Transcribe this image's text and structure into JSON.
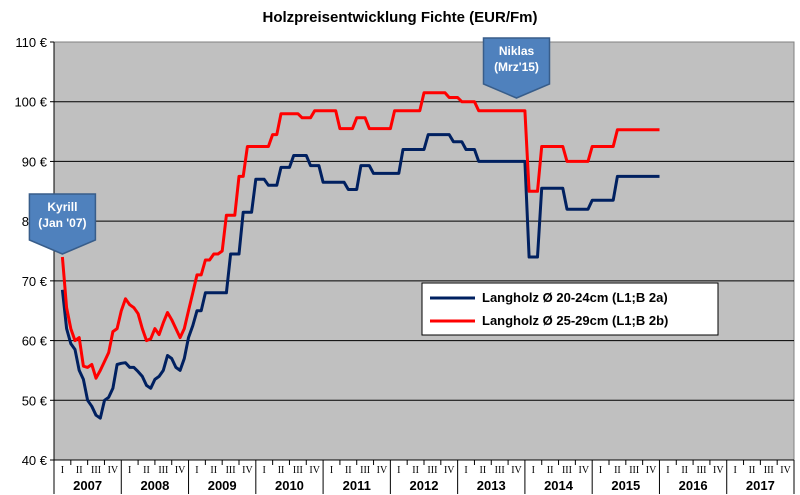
{
  "chart_data": {
    "type": "line",
    "title": "Holzpreisentwicklung  Fichte (EUR/Fm)",
    "ylim": [
      40,
      110
    ],
    "yticks": [
      "40 €",
      "50 €",
      "60 €",
      "70 €",
      "80 €",
      "90 €",
      "100 €",
      "110 €"
    ],
    "years": [
      "2007",
      "2008",
      "2009",
      "2010",
      "2011",
      "2012",
      "2013",
      "2014",
      "2015",
      "2016",
      "2017"
    ],
    "quarter_labels": [
      "I",
      "II",
      "III",
      "IV"
    ],
    "grid": true,
    "legend_position": "center-right",
    "series": [
      {
        "name": "Langholz Ø 20-24cm (L1;B 2a)",
        "color": "#002060",
        "points": [
          [
            0,
            68.5
          ],
          [
            0.25,
            62
          ],
          [
            0.5,
            59.5
          ],
          [
            0.75,
            58.5
          ],
          [
            1,
            55
          ],
          [
            1.25,
            53.5
          ],
          [
            1.5,
            50
          ],
          [
            1.75,
            49
          ],
          [
            2,
            47.5
          ],
          [
            2.25,
            47
          ],
          [
            2.5,
            50
          ],
          [
            2.75,
            50.5
          ],
          [
            3,
            52
          ],
          [
            3.25,
            56
          ],
          [
            3.5,
            56.2
          ],
          [
            3.75,
            56.3
          ],
          [
            4,
            55.5
          ],
          [
            4.25,
            55.5
          ],
          [
            4.5,
            54.8
          ],
          [
            4.75,
            54
          ],
          [
            5,
            52.5
          ],
          [
            5.25,
            52
          ],
          [
            5.5,
            53.5
          ],
          [
            5.75,
            54
          ],
          [
            6,
            55
          ],
          [
            6.25,
            57.5
          ],
          [
            6.5,
            57
          ],
          [
            6.75,
            55.5
          ],
          [
            7,
            55
          ],
          [
            7.25,
            57
          ],
          [
            7.5,
            60.5
          ],
          [
            7.75,
            62.5
          ],
          [
            8,
            65
          ],
          [
            8.25,
            65
          ],
          [
            8.5,
            68
          ],
          [
            9.75,
            68
          ],
          [
            10,
            74.5
          ],
          [
            10.5,
            74.5
          ],
          [
            10.75,
            81.5
          ],
          [
            11.25,
            81.5
          ],
          [
            11.5,
            87
          ],
          [
            12,
            87
          ],
          [
            12.25,
            86
          ],
          [
            12.75,
            86
          ],
          [
            13,
            89
          ],
          [
            13.5,
            89
          ],
          [
            13.75,
            91
          ],
          [
            14.5,
            91
          ],
          [
            14.75,
            89.3
          ],
          [
            15.25,
            89.3
          ],
          [
            15.5,
            86.5
          ],
          [
            16.75,
            86.5
          ],
          [
            17,
            85.3
          ],
          [
            17.5,
            85.3
          ],
          [
            17.75,
            89.3
          ],
          [
            18.25,
            89.3
          ],
          [
            18.5,
            88
          ],
          [
            20,
            88
          ],
          [
            20.25,
            92
          ],
          [
            21.5,
            92
          ],
          [
            21.75,
            94.5
          ],
          [
            23,
            94.5
          ],
          [
            23.25,
            93.3
          ],
          [
            23.75,
            93.3
          ],
          [
            24,
            92
          ],
          [
            24.5,
            92
          ],
          [
            24.75,
            90
          ],
          [
            27.5,
            90
          ],
          [
            27.75,
            74
          ],
          [
            28.25,
            74
          ],
          [
            28.5,
            85.5
          ],
          [
            29.75,
            85.5
          ],
          [
            30,
            82
          ],
          [
            31.25,
            82
          ],
          [
            31.5,
            83.5
          ],
          [
            32.75,
            83.5
          ],
          [
            33,
            87.5
          ],
          [
            35.5,
            87.5
          ]
        ]
      },
      {
        "name": "Langholz Ø 25-29cm (L1;B 2b)",
        "color": "#ff0000",
        "points": [
          [
            0,
            74
          ],
          [
            0.25,
            65.5
          ],
          [
            0.5,
            62
          ],
          [
            0.75,
            60
          ],
          [
            1,
            60.5
          ],
          [
            1.25,
            55.7
          ],
          [
            1.5,
            55.5
          ],
          [
            1.75,
            56
          ],
          [
            2,
            53.7
          ],
          [
            2.25,
            55
          ],
          [
            2.5,
            56.5
          ],
          [
            2.75,
            58
          ],
          [
            3,
            61.5
          ],
          [
            3.25,
            62
          ],
          [
            3.5,
            65
          ],
          [
            3.75,
            67
          ],
          [
            4,
            66
          ],
          [
            4.25,
            65.5
          ],
          [
            4.5,
            64.5
          ],
          [
            4.75,
            62
          ],
          [
            5,
            60
          ],
          [
            5.25,
            60.3
          ],
          [
            5.5,
            62
          ],
          [
            5.75,
            61
          ],
          [
            6,
            63
          ],
          [
            6.25,
            64.7
          ],
          [
            6.5,
            63.5
          ],
          [
            6.75,
            62
          ],
          [
            7,
            60.5
          ],
          [
            7.25,
            62
          ],
          [
            7.5,
            65
          ],
          [
            7.75,
            68
          ],
          [
            8,
            71
          ],
          [
            8.25,
            71
          ],
          [
            8.5,
            73.5
          ],
          [
            8.75,
            73.5
          ],
          [
            9,
            74.5
          ],
          [
            9.25,
            74.5
          ],
          [
            9.5,
            75
          ],
          [
            9.75,
            81
          ],
          [
            10.25,
            81
          ],
          [
            10.5,
            87.5
          ],
          [
            10.75,
            87.5
          ],
          [
            11,
            92.5
          ],
          [
            12.25,
            92.5
          ],
          [
            12.5,
            94.5
          ],
          [
            12.75,
            94.5
          ],
          [
            13,
            98
          ],
          [
            14,
            98
          ],
          [
            14.25,
            97.3
          ],
          [
            14.75,
            97.3
          ],
          [
            15,
            98.5
          ],
          [
            16.25,
            98.5
          ],
          [
            16.5,
            95.5
          ],
          [
            17.25,
            95.5
          ],
          [
            17.5,
            97.3
          ],
          [
            18,
            97.3
          ],
          [
            18.25,
            95.5
          ],
          [
            19.5,
            95.5
          ],
          [
            19.75,
            98.5
          ],
          [
            21.25,
            98.5
          ],
          [
            21.5,
            101.5
          ],
          [
            22.75,
            101.5
          ],
          [
            23,
            100.7
          ],
          [
            23.5,
            100.7
          ],
          [
            23.75,
            100
          ],
          [
            24.5,
            100
          ],
          [
            24.75,
            98.5
          ],
          [
            27.5,
            98.5
          ],
          [
            27.75,
            85
          ],
          [
            28.25,
            85
          ],
          [
            28.5,
            92.5
          ],
          [
            29.75,
            92.5
          ],
          [
            30,
            90
          ],
          [
            31.25,
            90
          ],
          [
            31.5,
            92.5
          ],
          [
            32.75,
            92.5
          ],
          [
            33,
            95.3
          ],
          [
            35.5,
            95.3
          ]
        ]
      }
    ],
    "annotations": [
      {
        "lines": [
          "Kyrill",
          "(Jan '07)"
        ],
        "x": 0
      },
      {
        "lines": [
          "Niklas",
          "(Mrz'15)"
        ],
        "x": 27
      }
    ]
  }
}
